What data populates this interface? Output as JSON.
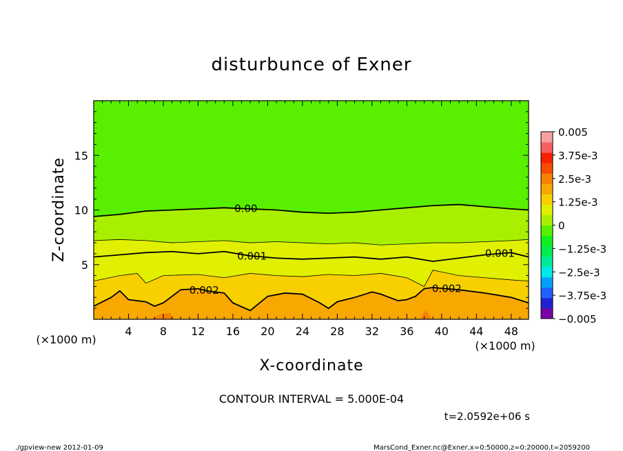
{
  "chart_data": {
    "type": "heatmap",
    "title": "disturbunce of Exner",
    "xlabel": "X-coordinate",
    "ylabel": "Z-coordinate",
    "x_unit": "(×1000 m)",
    "x_unit_right": "(×1000 m)",
    "xlim": [
      0,
      50
    ],
    "ylim": [
      0,
      20
    ],
    "x_ticks": [
      4,
      8,
      12,
      16,
      20,
      24,
      28,
      32,
      36,
      40,
      44,
      48
    ],
    "x_tick_labels": [
      "4",
      "8",
      "12",
      "16",
      "20",
      "24",
      "28",
      "32",
      "36",
      "40",
      "44",
      "48"
    ],
    "y_ticks": [
      5,
      10,
      15
    ],
    "y_tick_labels": [
      "5",
      "10",
      "15"
    ],
    "colorbar": {
      "levels": [
        -0.005,
        -0.00375,
        -0.0025,
        -0.00125,
        0,
        0.00125,
        0.0025,
        0.00375,
        0.005
      ],
      "labels": [
        "0.005",
        "3.75e-3",
        "2.5e-3",
        "1.25e-3",
        "0",
        "−1.25e-3",
        "−2.5e-3",
        "−3.75e-3",
        "−0.005"
      ],
      "colors": [
        "#7a00a8",
        "#2020d0",
        "#2060ff",
        "#00a0ff",
        "#00e8e8",
        "#00e89a",
        "#00ec50",
        "#10f020",
        "#58f000",
        "#a8f000",
        "#e0f000",
        "#f8d000",
        "#f8a800",
        "#f88000",
        "#f84c00",
        "#f82000",
        "#f86060",
        "#f8a0a0"
      ]
    },
    "contour_labels": [
      "0.00",
      "0.001",
      "0.001",
      "0.002",
      "0.002"
    ],
    "contour_levels": [
      {
        "value": 0.0,
        "x": [
          0,
          3,
          6,
          9,
          12,
          15,
          18,
          21,
          24,
          27,
          30,
          33,
          36,
          39,
          42,
          45,
          48,
          50
        ],
        "y": [
          9.4,
          9.6,
          9.9,
          10.0,
          10.1,
          10.2,
          10.1,
          10.0,
          9.8,
          9.7,
          9.8,
          10.0,
          10.2,
          10.4,
          10.5,
          10.3,
          10.1,
          10.0
        ]
      },
      {
        "value": 0.0005,
        "x": [
          0,
          3,
          6,
          9,
          12,
          15,
          18,
          21,
          24,
          27,
          30,
          33,
          36,
          39,
          42,
          45,
          48,
          50
        ],
        "y": [
          7.2,
          7.3,
          7.2,
          7.0,
          7.1,
          7.2,
          7.0,
          7.1,
          7.0,
          6.9,
          7.0,
          6.8,
          6.9,
          7.0,
          7.0,
          7.1,
          7.2,
          7.3
        ]
      },
      {
        "value": 0.001,
        "x": [
          0,
          3,
          6,
          9,
          12,
          15,
          18,
          21,
          24,
          27,
          30,
          33,
          36,
          39,
          42,
          45,
          48,
          50
        ],
        "y": [
          5.7,
          5.9,
          6.1,
          6.2,
          6.0,
          6.2,
          5.8,
          5.6,
          5.5,
          5.6,
          5.7,
          5.5,
          5.7,
          5.3,
          5.6,
          5.9,
          6.1,
          5.7
        ]
      },
      {
        "value": 0.0015,
        "x": [
          0,
          3,
          5,
          6,
          8,
          12,
          15,
          18,
          21,
          24,
          27,
          30,
          33,
          36,
          37,
          38,
          39,
          42,
          45,
          48,
          50
        ],
        "y": [
          3.5,
          4.0,
          4.2,
          3.3,
          4.0,
          4.1,
          3.8,
          4.2,
          4.0,
          3.9,
          4.1,
          4.0,
          4.2,
          3.8,
          3.4,
          3.0,
          4.5,
          4.0,
          3.8,
          3.6,
          3.5
        ]
      },
      {
        "value": 0.002,
        "x": [
          0,
          2,
          3,
          4,
          6,
          7,
          8,
          10,
          12,
          13,
          15,
          16,
          18,
          20,
          22,
          24,
          26,
          27,
          28,
          30,
          32,
          33,
          35,
          36,
          37,
          38,
          39,
          42,
          45,
          48,
          50
        ],
        "y": [
          1.2,
          2.0,
          2.6,
          1.8,
          1.6,
          1.2,
          1.5,
          2.7,
          2.8,
          2.6,
          2.4,
          1.5,
          0.8,
          2.1,
          2.4,
          2.3,
          1.5,
          1.0,
          1.6,
          2.0,
          2.5,
          2.3,
          1.7,
          1.8,
          2.1,
          2.8,
          2.9,
          2.7,
          2.4,
          2.0,
          1.5
        ]
      },
      {
        "value": 0.0025,
        "x": [
          6.5,
          7.5,
          8.8,
          9.2,
          37.5,
          38.2,
          38.8
        ],
        "y": [
          0.0,
          0.4,
          0.6,
          0.0,
          0.0,
          0.9,
          0.0
        ]
      }
    ]
  },
  "texts": {
    "contour_interval": "CONTOUR INTERVAL = 5.000E-04",
    "time": "t=2.0592e+06 s",
    "footer_left": "./gpview-new   2012-01-09",
    "footer_right": "MarsCond_Exner.nc@Exner,x=0:50000,z=0:20000,t=2059200"
  }
}
